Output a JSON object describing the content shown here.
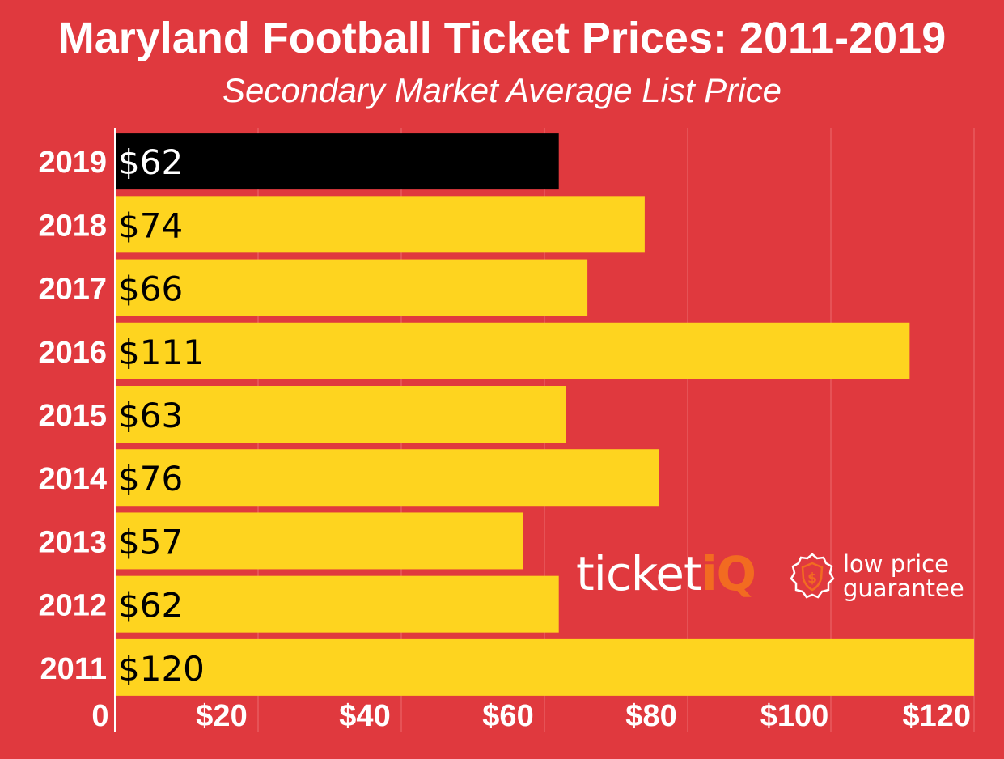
{
  "title": "Maryland Football Ticket Prices: 2011-2019",
  "subtitle": "Secondary Market Average List Price",
  "colors": {
    "background": "#e0393e",
    "bar_default": "#fed41f",
    "bar_highlight": "#000000",
    "label_on_default": "#000000",
    "label_on_highlight": "#ffffff",
    "logo_accent": "#f26b21"
  },
  "logo": {
    "word_main": "ticket",
    "word_accent": "iQ",
    "tagline_line1": "low price",
    "tagline_line2": "guarantee",
    "icon": "dollar-seal-icon"
  },
  "chart_data": {
    "type": "bar",
    "orientation": "horizontal",
    "categories": [
      "2019",
      "2018",
      "2017",
      "2016",
      "2015",
      "2014",
      "2013",
      "2012",
      "2011"
    ],
    "values": [
      62,
      74,
      66,
      111,
      63,
      76,
      57,
      62,
      120
    ],
    "data_labels": [
      "$62",
      "$74",
      "$66",
      "$111",
      "$63",
      "$76",
      "$57",
      "$62",
      "$120"
    ],
    "highlight": "2019",
    "xlim": [
      0,
      120
    ],
    "x_ticks": [
      0,
      20,
      40,
      60,
      80,
      100,
      120
    ],
    "x_tick_labels": [
      "0",
      "$20",
      "$40",
      "$60",
      "$80",
      "$100",
      "$120"
    ],
    "grid": true
  }
}
